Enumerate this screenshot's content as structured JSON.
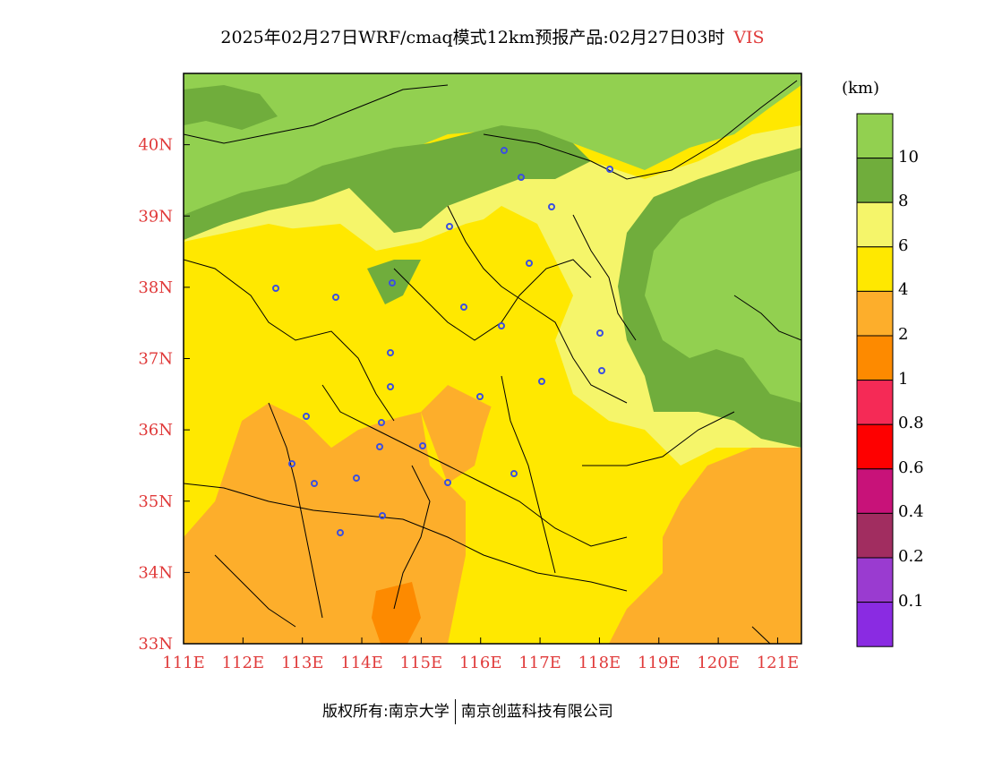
{
  "title": {
    "main": "2025年02月27日WRF/cmaq模式12km预报产品:02月27日03时",
    "variable": "VIS"
  },
  "map": {
    "x_ticks": [
      "111E",
      "112E",
      "113E",
      "114E",
      "115E",
      "116E",
      "117E",
      "118E",
      "119E",
      "120E",
      "121E"
    ],
    "y_ticks": [
      "33N",
      "34N",
      "35N",
      "36N",
      "37N",
      "38N",
      "39N",
      "40N"
    ],
    "extent": {
      "lon": [
        111,
        121.4
      ],
      "lat": [
        33,
        41
      ]
    },
    "tick_color": "#e03a3a",
    "station_marker_color": "#3b4fe0"
  },
  "legend": {
    "unit": "(km)",
    "labels": [
      "10",
      "8",
      "6",
      "4",
      "2",
      "1",
      "0.8",
      "0.6",
      "0.4",
      "0.2",
      "0.1"
    ],
    "colors": [
      "#92d050",
      "#70ad3c",
      "#f5f56a",
      "#ffe800",
      "#fdae2b",
      "#fd8a00",
      "#f52a56",
      "#fe0000",
      "#c81279",
      "#a12d60",
      "#9a3bd0",
      "#8a2be2"
    ]
  },
  "footer": {
    "owner": "版权所有:南京大学",
    "company": "南京创蓝科技有限公司"
  }
}
